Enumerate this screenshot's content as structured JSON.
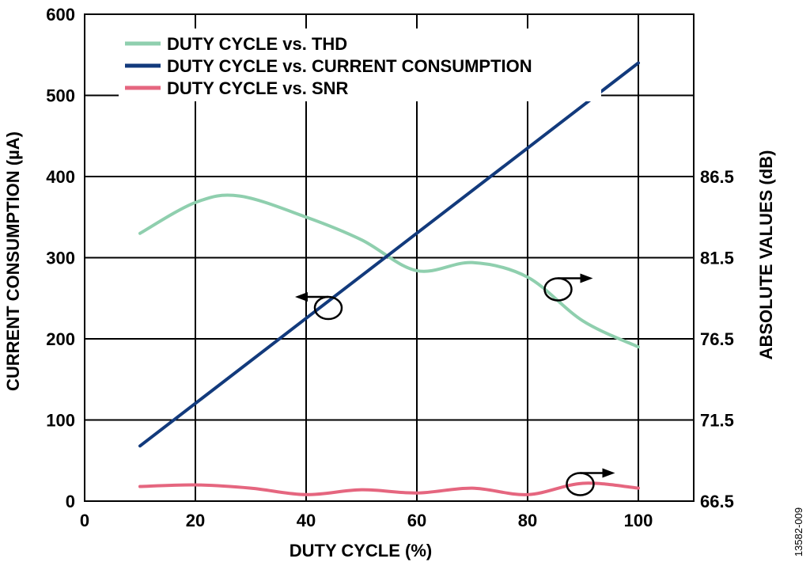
{
  "chart_data": {
    "type": "line",
    "xlabel": "DUTY CYCLE (%)",
    "ylabel_left": "CURRENT CONSUMPTION (µA)",
    "ylabel_right": "ABSOLUTE VALUES (dB)",
    "xlim": [
      0,
      110
    ],
    "ylim_left": [
      0,
      600
    ],
    "ylim_right": [
      66.5,
      96.5
    ],
    "x_ticks": [
      "0",
      "20",
      "40",
      "60",
      "80",
      "100"
    ],
    "y_left_ticks": [
      "0",
      "100",
      "200",
      "300",
      "400",
      "500",
      "600"
    ],
    "y_right_ticks": [
      "66.5",
      "71.5",
      "76.5",
      "81.5",
      "86.5"
    ],
    "grid": true,
    "legend_position": "top-left",
    "series": [
      {
        "name": "DUTY CYCLE vs. THD",
        "axis": "right",
        "color": "#8fcfae",
        "x": [
          10,
          20,
          28,
          40,
          50,
          60,
          70,
          80,
          90,
          100
        ],
        "y": [
          83.0,
          84.9,
          85.3,
          84.0,
          82.6,
          80.7,
          81.2,
          80.3,
          77.6,
          76.0
        ]
      },
      {
        "name": "DUTY CYCLE vs. CURRENT CONSUMPTION",
        "axis": "left",
        "color": "#123a7c",
        "x": [
          10,
          100
        ],
        "y": [
          68,
          540
        ]
      },
      {
        "name": "DUTY CYCLE vs. SNR",
        "axis": "right",
        "color": "#e5667f",
        "x": [
          10,
          20,
          30,
          40,
          50,
          60,
          70,
          80,
          90,
          100
        ],
        "y": [
          67.4,
          67.5,
          67.3,
          66.9,
          67.2,
          67.0,
          67.3,
          66.9,
          67.6,
          67.3
        ]
      }
    ],
    "figure_id": "13582-009"
  }
}
